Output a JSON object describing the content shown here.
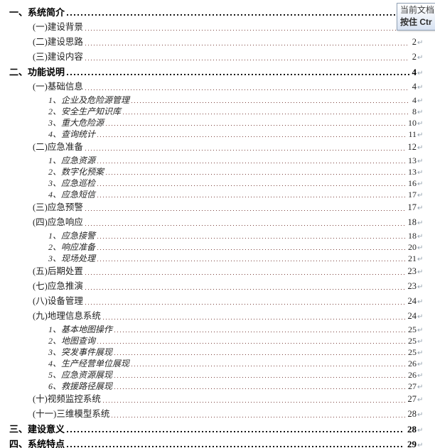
{
  "tooltip": {
    "line1": "当前文档",
    "line2": "按住 Ctr"
  },
  "toc": {
    "return_mark": "↵",
    "entries": [
      {
        "level": 1,
        "label": "一、系统简介",
        "page": ""
      },
      {
        "level": 2,
        "label": "(一)建设背景",
        "page": ""
      },
      {
        "level": 2,
        "label": "(二)建设思路",
        "page": "2"
      },
      {
        "level": 2,
        "label": "(三)建设内容",
        "page": "2"
      },
      {
        "level": 1,
        "label": "二、功能说明",
        "page": "4"
      },
      {
        "level": 2,
        "label": "(一)基础信息",
        "page": "4"
      },
      {
        "level": 3,
        "label": "1、企业及危险源管理",
        "page": "4"
      },
      {
        "level": 3,
        "label": "2、安全生产知识库",
        "page": "8"
      },
      {
        "level": 3,
        "label": "3、重大危险源",
        "page": "10"
      },
      {
        "level": 3,
        "label": "4、查询统计",
        "page": "11"
      },
      {
        "level": 2,
        "label": "(二)应急准备",
        "page": "12"
      },
      {
        "level": 3,
        "label": "1、应急资源",
        "page": "13"
      },
      {
        "level": 3,
        "label": "2、数字化预案",
        "page": "13"
      },
      {
        "level": 3,
        "label": "3、应急巡检",
        "page": "16"
      },
      {
        "level": 3,
        "label": "4、应急短信",
        "page": "17"
      },
      {
        "level": 2,
        "label": "(三)应急预警",
        "page": "17"
      },
      {
        "level": 2,
        "label": "(四)应急响应",
        "page": "18"
      },
      {
        "level": 3,
        "label": "1、应急接警",
        "page": "18"
      },
      {
        "level": 3,
        "label": "2、响应准备",
        "page": "20"
      },
      {
        "level": 3,
        "label": "3、现场处理",
        "page": "21"
      },
      {
        "level": 2,
        "label": "(五)后期处置",
        "page": "23"
      },
      {
        "level": 2,
        "label": "(七)应急推演",
        "page": "23"
      },
      {
        "level": 2,
        "label": "(八)设备管理",
        "page": "24"
      },
      {
        "level": 2,
        "label": "(九)地理信息系统",
        "page": "24"
      },
      {
        "level": 3,
        "label": "1、基本地图操作",
        "page": "25"
      },
      {
        "level": 3,
        "label": "2、地图查询",
        "page": "25"
      },
      {
        "level": 3,
        "label": "3、突发事件展现",
        "page": "25"
      },
      {
        "level": 3,
        "label": "4、生产经营单位展现",
        "page": "26"
      },
      {
        "level": 3,
        "label": "5、应急资源展现",
        "page": "26"
      },
      {
        "level": 3,
        "label": "6、救援路径展现",
        "page": "27"
      },
      {
        "level": 2,
        "label": "(十)视频监控系统",
        "page": "27"
      },
      {
        "level": 2,
        "label": "(十一)三维模型系统",
        "page": "28"
      },
      {
        "level": 1,
        "label": "三、建设意义",
        "page": "28"
      },
      {
        "level": 1,
        "label": "四、系统特点",
        "page": "29"
      }
    ]
  },
  "colors": {
    "leader_normal": "#7a3f3a",
    "leader_bold": "#151515",
    "return_mark": "#93a0ad",
    "tooltip_border": "#90a1b5",
    "tooltip_bg_bottom": "#d7e2f2"
  }
}
